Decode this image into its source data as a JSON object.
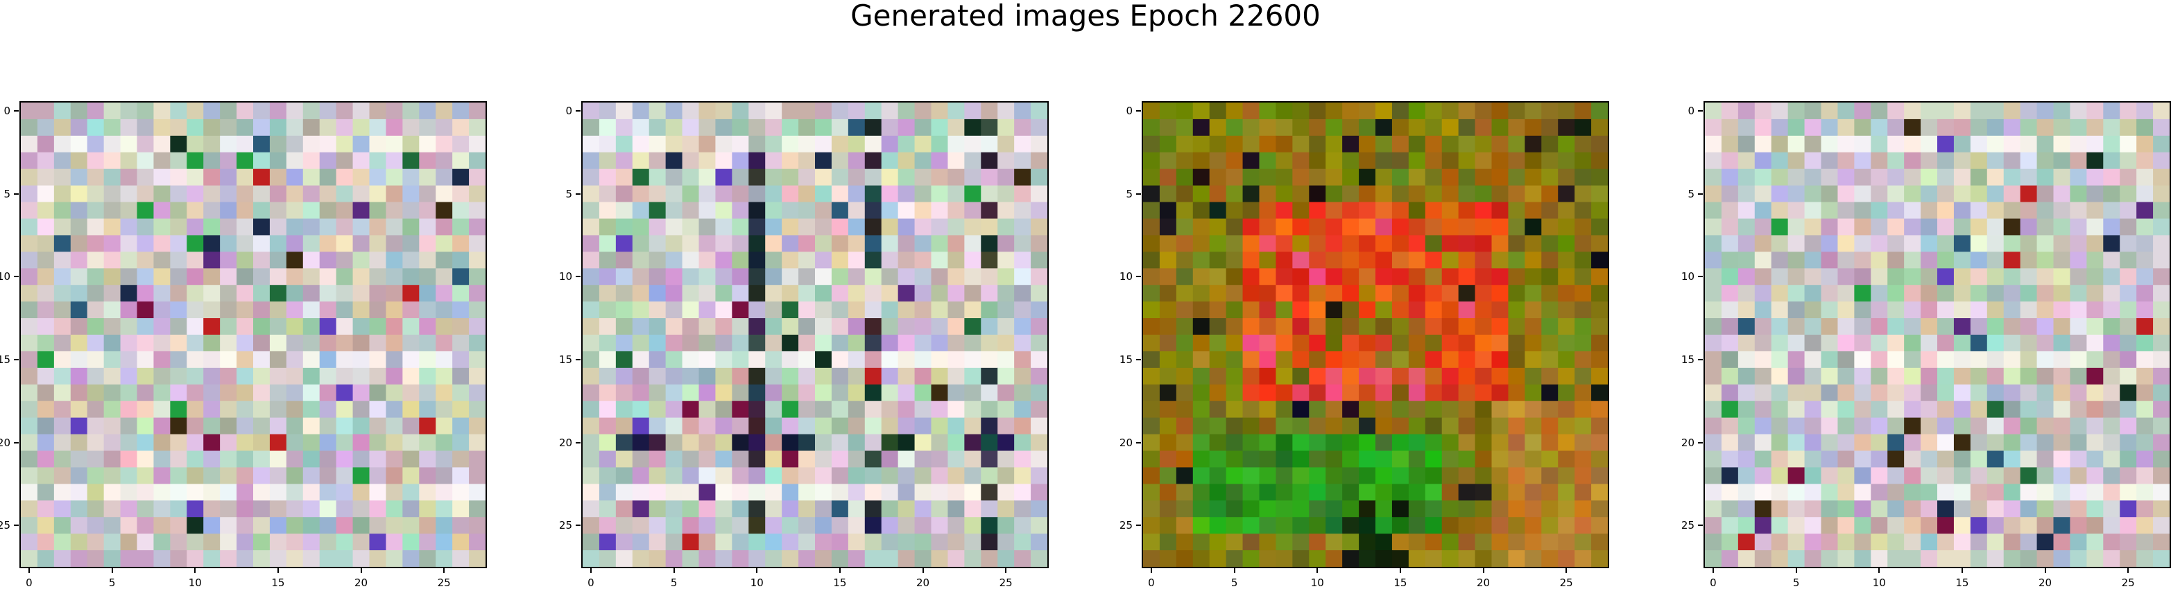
{
  "title": "Generated images Epoch 22600",
  "chart_data": [
    {
      "type": "heatmap",
      "image": "generated-sample-1",
      "grid": [
        28,
        28
      ],
      "color_mode": "rgb",
      "palette": "pastel-noise",
      "xlim": [
        -0.5,
        27.5
      ],
      "ylim": [
        27.5,
        -0.5
      ],
      "xticks": [
        "0",
        "5",
        "10",
        "15",
        "20",
        "25"
      ],
      "yticks": [
        "0",
        "5",
        "10",
        "15",
        "20",
        "25"
      ]
    },
    {
      "type": "heatmap",
      "image": "generated-sample-2",
      "grid": [
        28,
        28
      ],
      "color_mode": "rgb",
      "palette": "pastel-noise-dark-lattice",
      "xlim": [
        -0.5,
        27.5
      ],
      "ylim": [
        27.5,
        -0.5
      ],
      "xticks": [
        "0",
        "5",
        "10",
        "15",
        "20",
        "25"
      ],
      "yticks": [
        "0",
        "5",
        "10",
        "15",
        "20",
        "25"
      ]
    },
    {
      "type": "heatmap",
      "image": "generated-sample-3",
      "grid": [
        28,
        28
      ],
      "color_mode": "rgb",
      "palette": "red-center-on-olive-green",
      "xlim": [
        -0.5,
        27.5
      ],
      "ylim": [
        27.5,
        -0.5
      ],
      "xticks": [
        "0",
        "5",
        "10",
        "15",
        "20",
        "25"
      ],
      "yticks": [
        "0",
        "5",
        "10",
        "15",
        "20",
        "25"
      ]
    },
    {
      "type": "heatmap",
      "image": "generated-sample-4",
      "grid": [
        28,
        28
      ],
      "color_mode": "rgb",
      "palette": "pastel-noise",
      "xlim": [
        -0.5,
        27.5
      ],
      "ylim": [
        27.5,
        -0.5
      ],
      "xticks": [
        "0",
        "5",
        "10",
        "15",
        "20",
        "25"
      ],
      "yticks": [
        "0",
        "5",
        "10",
        "15",
        "20",
        "25"
      ]
    }
  ]
}
